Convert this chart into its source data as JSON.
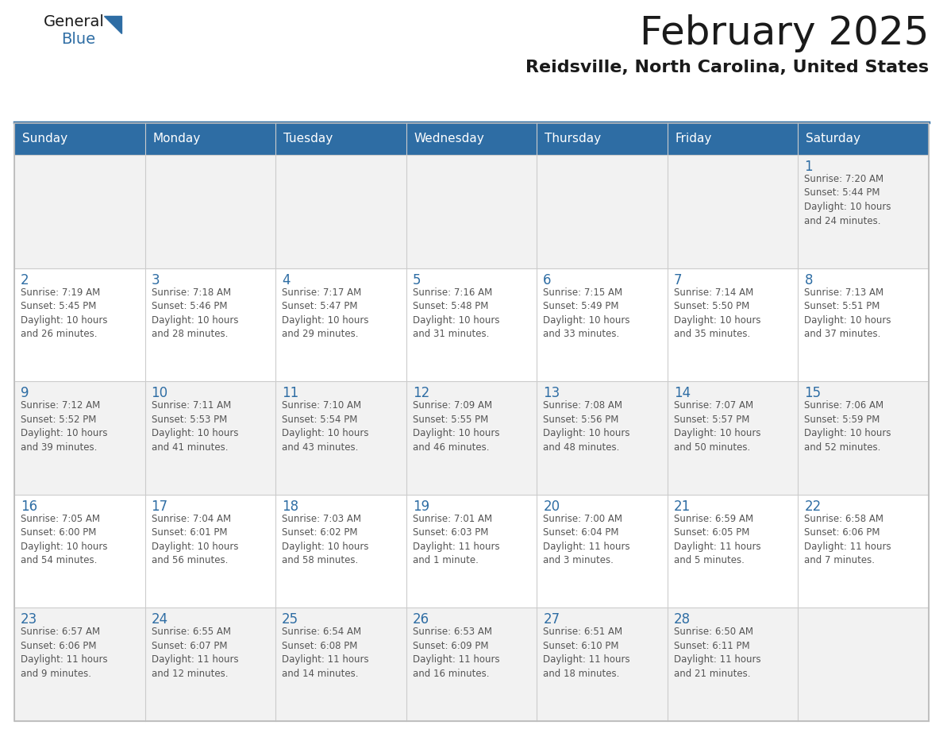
{
  "title": "February 2025",
  "subtitle": "Reidsville, North Carolina, United States",
  "header_bg": "#2E6DA4",
  "header_text": "#FFFFFF",
  "cell_bg_odd": "#F2F2F2",
  "cell_bg_even": "#FFFFFF",
  "day_number_color": "#2E6DA4",
  "cell_text_color": "#555555",
  "days_of_week": [
    "Sunday",
    "Monday",
    "Tuesday",
    "Wednesday",
    "Thursday",
    "Friday",
    "Saturday"
  ],
  "weeks": [
    [
      {
        "day": "",
        "info": ""
      },
      {
        "day": "",
        "info": ""
      },
      {
        "day": "",
        "info": ""
      },
      {
        "day": "",
        "info": ""
      },
      {
        "day": "",
        "info": ""
      },
      {
        "day": "",
        "info": ""
      },
      {
        "day": "1",
        "info": "Sunrise: 7:20 AM\nSunset: 5:44 PM\nDaylight: 10 hours\nand 24 minutes."
      }
    ],
    [
      {
        "day": "2",
        "info": "Sunrise: 7:19 AM\nSunset: 5:45 PM\nDaylight: 10 hours\nand 26 minutes."
      },
      {
        "day": "3",
        "info": "Sunrise: 7:18 AM\nSunset: 5:46 PM\nDaylight: 10 hours\nand 28 minutes."
      },
      {
        "day": "4",
        "info": "Sunrise: 7:17 AM\nSunset: 5:47 PM\nDaylight: 10 hours\nand 29 minutes."
      },
      {
        "day": "5",
        "info": "Sunrise: 7:16 AM\nSunset: 5:48 PM\nDaylight: 10 hours\nand 31 minutes."
      },
      {
        "day": "6",
        "info": "Sunrise: 7:15 AM\nSunset: 5:49 PM\nDaylight: 10 hours\nand 33 minutes."
      },
      {
        "day": "7",
        "info": "Sunrise: 7:14 AM\nSunset: 5:50 PM\nDaylight: 10 hours\nand 35 minutes."
      },
      {
        "day": "8",
        "info": "Sunrise: 7:13 AM\nSunset: 5:51 PM\nDaylight: 10 hours\nand 37 minutes."
      }
    ],
    [
      {
        "day": "9",
        "info": "Sunrise: 7:12 AM\nSunset: 5:52 PM\nDaylight: 10 hours\nand 39 minutes."
      },
      {
        "day": "10",
        "info": "Sunrise: 7:11 AM\nSunset: 5:53 PM\nDaylight: 10 hours\nand 41 minutes."
      },
      {
        "day": "11",
        "info": "Sunrise: 7:10 AM\nSunset: 5:54 PM\nDaylight: 10 hours\nand 43 minutes."
      },
      {
        "day": "12",
        "info": "Sunrise: 7:09 AM\nSunset: 5:55 PM\nDaylight: 10 hours\nand 46 minutes."
      },
      {
        "day": "13",
        "info": "Sunrise: 7:08 AM\nSunset: 5:56 PM\nDaylight: 10 hours\nand 48 minutes."
      },
      {
        "day": "14",
        "info": "Sunrise: 7:07 AM\nSunset: 5:57 PM\nDaylight: 10 hours\nand 50 minutes."
      },
      {
        "day": "15",
        "info": "Sunrise: 7:06 AM\nSunset: 5:59 PM\nDaylight: 10 hours\nand 52 minutes."
      }
    ],
    [
      {
        "day": "16",
        "info": "Sunrise: 7:05 AM\nSunset: 6:00 PM\nDaylight: 10 hours\nand 54 minutes."
      },
      {
        "day": "17",
        "info": "Sunrise: 7:04 AM\nSunset: 6:01 PM\nDaylight: 10 hours\nand 56 minutes."
      },
      {
        "day": "18",
        "info": "Sunrise: 7:03 AM\nSunset: 6:02 PM\nDaylight: 10 hours\nand 58 minutes."
      },
      {
        "day": "19",
        "info": "Sunrise: 7:01 AM\nSunset: 6:03 PM\nDaylight: 11 hours\nand 1 minute."
      },
      {
        "day": "20",
        "info": "Sunrise: 7:00 AM\nSunset: 6:04 PM\nDaylight: 11 hours\nand 3 minutes."
      },
      {
        "day": "21",
        "info": "Sunrise: 6:59 AM\nSunset: 6:05 PM\nDaylight: 11 hours\nand 5 minutes."
      },
      {
        "day": "22",
        "info": "Sunrise: 6:58 AM\nSunset: 6:06 PM\nDaylight: 11 hours\nand 7 minutes."
      }
    ],
    [
      {
        "day": "23",
        "info": "Sunrise: 6:57 AM\nSunset: 6:06 PM\nDaylight: 11 hours\nand 9 minutes."
      },
      {
        "day": "24",
        "info": "Sunrise: 6:55 AM\nSunset: 6:07 PM\nDaylight: 11 hours\nand 12 minutes."
      },
      {
        "day": "25",
        "info": "Sunrise: 6:54 AM\nSunset: 6:08 PM\nDaylight: 11 hours\nand 14 minutes."
      },
      {
        "day": "26",
        "info": "Sunrise: 6:53 AM\nSunset: 6:09 PM\nDaylight: 11 hours\nand 16 minutes."
      },
      {
        "day": "27",
        "info": "Sunrise: 6:51 AM\nSunset: 6:10 PM\nDaylight: 11 hours\nand 18 minutes."
      },
      {
        "day": "28",
        "info": "Sunrise: 6:50 AM\nSunset: 6:11 PM\nDaylight: 11 hours\nand 21 minutes."
      },
      {
        "day": "",
        "info": ""
      }
    ]
  ],
  "logo_color1": "#1a1a1a",
  "logo_color2": "#2E6DA4",
  "title_fontsize": 36,
  "subtitle_fontsize": 16,
  "header_fontsize": 11,
  "day_num_fontsize": 12,
  "cell_text_fontsize": 8.5
}
